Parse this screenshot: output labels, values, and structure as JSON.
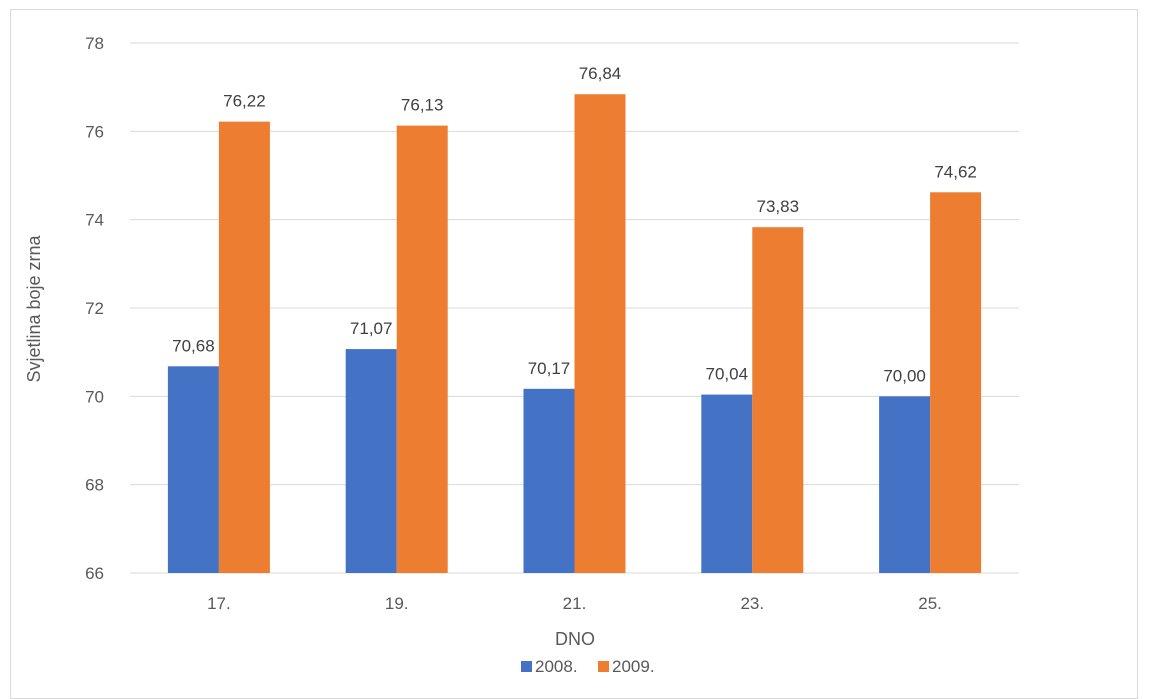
{
  "chart_data": {
    "type": "bar",
    "categories": [
      "17.",
      "19.",
      "21.",
      "23.",
      "25."
    ],
    "series": [
      {
        "name": "2008.",
        "color": "#4472C4",
        "values": [
          70.68,
          71.07,
          70.17,
          70.04,
          70.0
        ],
        "labels": [
          "70,68",
          "71,07",
          "70,17",
          "70,04",
          "70,00"
        ]
      },
      {
        "name": "2009.",
        "color": "#ED7D31",
        "values": [
          76.22,
          76.13,
          76.84,
          73.83,
          74.62
        ],
        "labels": [
          "76,22",
          "76,13",
          "76,84",
          "73,83",
          "74,62"
        ]
      }
    ],
    "xlabel": "DNO",
    "ylabel": "Svjetlina boje zrna",
    "ylim": [
      66,
      78
    ],
    "yticks": [
      66,
      68,
      70,
      72,
      74,
      76,
      78
    ],
    "grid": true,
    "legend_position": "bottom"
  }
}
